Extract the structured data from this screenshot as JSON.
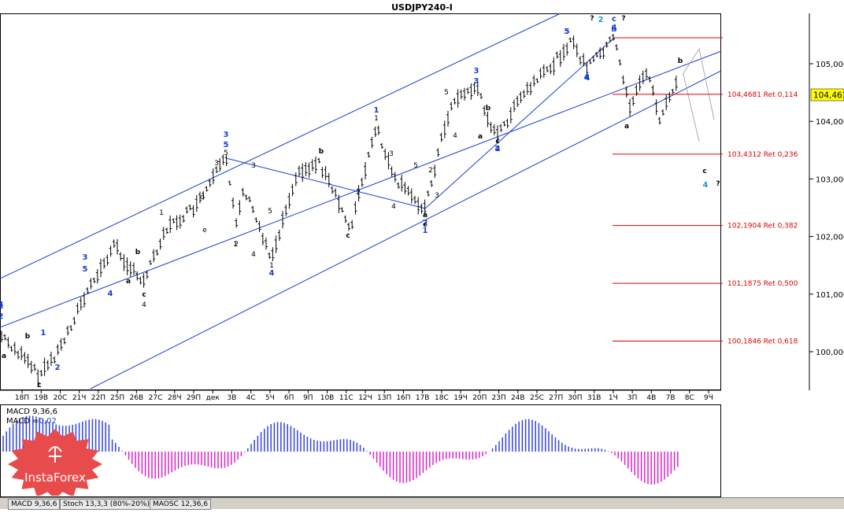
{
  "window": {
    "title": "USDJPY240-I"
  },
  "price_panel": {
    "current_price": "104,461",
    "y_ticks": [
      "105,000",
      "104,000",
      "103,000",
      "102,000",
      "101,000",
      "100,000"
    ],
    "x_ticks": [
      "18П",
      "19В",
      "20С",
      "21Ч",
      "22П",
      "25П",
      "26В",
      "27С",
      "28Ч",
      "29П",
      "дек",
      "3В",
      "4С",
      "5Ч",
      "6П",
      "9П",
      "10В",
      "11С",
      "12Ч",
      "13П",
      "16П",
      "17В",
      "18С",
      "19Ч",
      "20П",
      "23П",
      "24В",
      "25С",
      "27П",
      "30П",
      "31В",
      "1Ч",
      "3П",
      "4В",
      "7В",
      "8С",
      "9Ч"
    ],
    "fib_levels": [
      {
        "label": "104,4681 Ret 0,114",
        "price": 104.4681
      },
      {
        "label": "103,4312 Ret 0,236",
        "price": 103.4312
      },
      {
        "label": "102,1904 Ret 0,382",
        "price": 102.1904
      },
      {
        "label": "101,1875 Ret 0,500",
        "price": 101.1875
      },
      {
        "label": "100,1846 Ret 0,618",
        "price": 100.1846
      }
    ],
    "wave_labels": {
      "blue": [
        "1",
        "2",
        "3",
        "5",
        "4",
        "1",
        "2",
        "3",
        "5",
        "4",
        "1",
        "2",
        "3",
        "4",
        "5",
        "4",
        "b",
        "c",
        "1",
        "2",
        "4",
        "3",
        "5",
        "4",
        "2",
        "4",
        "4"
      ],
      "black": [
        "a",
        "b",
        "c",
        "4",
        "a",
        "b",
        "c",
        "d",
        "e",
        "1",
        "2",
        "3",
        "4",
        "5",
        "1",
        "2",
        "3",
        "4",
        "5",
        "a",
        "b",
        "c",
        "1",
        "2",
        "3",
        "4",
        "5",
        "c",
        "a",
        "b",
        "c",
        "?",
        "?",
        "?",
        "1",
        "3",
        "5",
        "a",
        "b",
        "c"
      ]
    }
  },
  "indicator_panel": {
    "title_line1": "MACD 9,36,6",
    "title_line2_prefix": "MACD =",
    "title_line2_value": "0,02"
  },
  "tabs": [
    "MACD 9,36,6",
    "Stoch 13,3,3 (80%-20%)",
    "MAOSC 12,36,6"
  ],
  "logo": {
    "text": "InstaForex"
  },
  "chart_data": {
    "type": "candlestick",
    "title": "USDJPY240-I",
    "ylim": [
      99.35,
      105.6
    ],
    "indicator": {
      "name": "MACD 9,36,6",
      "current": 0.02
    },
    "annotations": [
      "104,4681 Ret 0,114",
      "103,4312 Ret 0,236",
      "102,1904 Ret 0,382",
      "101,1875 Ret 0,500",
      "100,1846 Ret 0,618"
    ]
  },
  "colors": {
    "axis": "#000000",
    "channel": "#1a3fcf",
    "fib": "#dd0000",
    "macd_pos": "#3344dd",
    "macd_neg": "#dd22cc",
    "wave_blue": "#1a3fcf",
    "wave_cyan": "#2299cc",
    "logo": "#e84b4b"
  }
}
